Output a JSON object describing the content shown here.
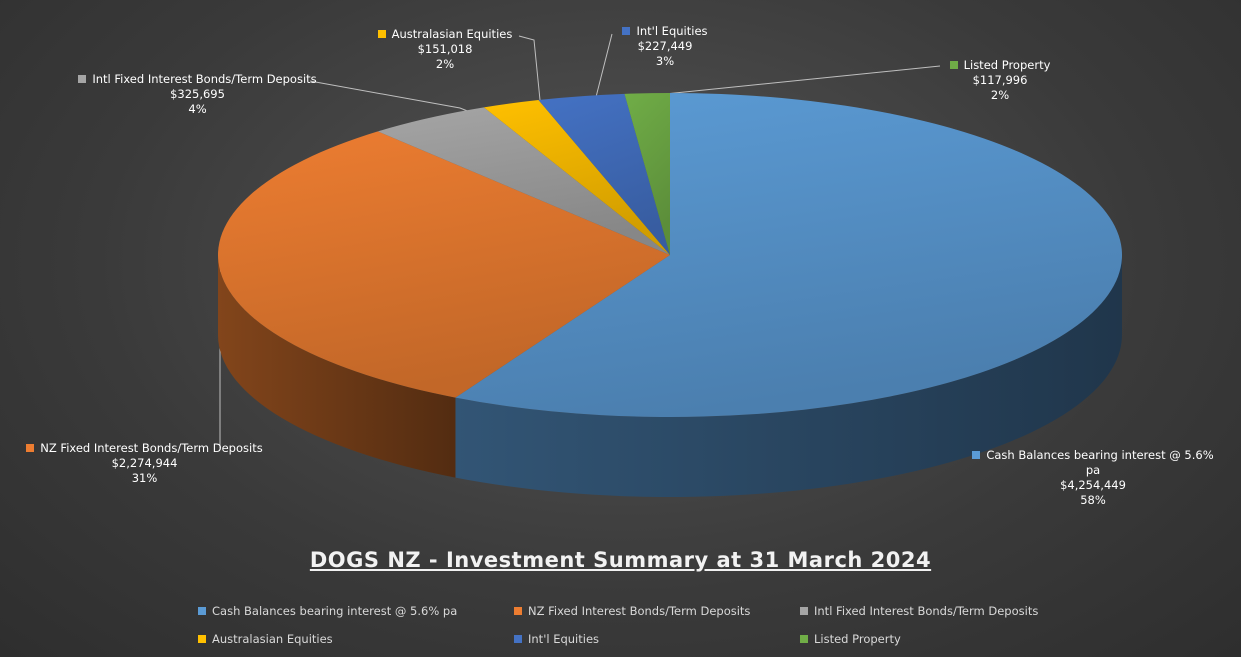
{
  "chart_data": {
    "type": "pie3d",
    "title": "DOGS NZ - Investment Summary at 31 March 2024",
    "categories": [
      "Cash Balances bearing interest @ 5.6% pa",
      "NZ Fixed Interest Bonds/Term Deposits",
      "Intl Fixed Interest Bonds/Term Deposits",
      "Australasian Equities",
      "Int'l Equities",
      "Listed Property"
    ],
    "values": [
      4254449,
      2274944,
      325695,
      151018,
      227449,
      117996
    ],
    "value_labels": [
      "$4,254,449",
      "$2,274,944",
      "$325,695",
      "$151,018",
      "$227,449",
      "$117,996"
    ],
    "percents": [
      58,
      31,
      4,
      2,
      3,
      2
    ],
    "percent_labels": [
      "58%",
      "31%",
      "4%",
      "2%",
      "3%",
      "2%"
    ],
    "colors": [
      "#5b9bd5",
      "#ed7d31",
      "#a5a5a5",
      "#ffc000",
      "#4472c4",
      "#70ad47"
    ],
    "legend": "bottom"
  }
}
